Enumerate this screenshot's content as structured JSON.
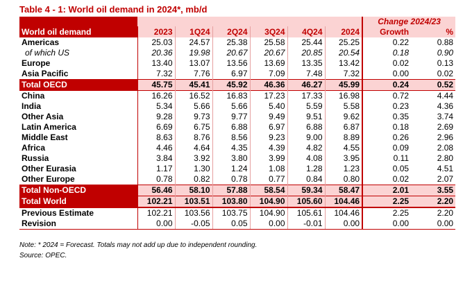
{
  "title": "Table 4 - 1: World oil demand in 2024*, mb/d",
  "header": {
    "change_group": "Change 2024/23",
    "row_label": "World oil demand",
    "periods": [
      "2023",
      "1Q24",
      "2Q24",
      "3Q24",
      "4Q24",
      "2024"
    ],
    "growth": "Growth",
    "pct": "%"
  },
  "groups": [
    {
      "rows": [
        {
          "label": "Americas",
          "values": [
            "25.03",
            "24.57",
            "25.38",
            "25.58",
            "25.44",
            "25.25"
          ],
          "growth": "0.22",
          "pct": "0.88"
        },
        {
          "label": "of which US",
          "values": [
            "20.36",
            "19.98",
            "20.67",
            "20.67",
            "20.85",
            "20.54"
          ],
          "growth": "0.18",
          "pct": "0.90"
        },
        {
          "label": "Europe",
          "values": [
            "13.40",
            "13.07",
            "13.56",
            "13.69",
            "13.35",
            "13.42"
          ],
          "growth": "0.02",
          "pct": "0.13"
        },
        {
          "label": "Asia Pacific",
          "values": [
            "7.32",
            "7.76",
            "6.97",
            "7.09",
            "7.48",
            "7.32"
          ],
          "growth": "0.00",
          "pct": "0.02"
        }
      ],
      "total": {
        "label": "Total OECD",
        "values": [
          "45.75",
          "45.41",
          "45.92",
          "46.36",
          "46.27",
          "45.99"
        ],
        "growth": "0.24",
        "pct": "0.52"
      }
    },
    {
      "rows": [
        {
          "label": "China",
          "values": [
            "16.26",
            "16.52",
            "16.83",
            "17.23",
            "17.33",
            "16.98"
          ],
          "growth": "0.72",
          "pct": "4.44"
        },
        {
          "label": "India",
          "values": [
            "5.34",
            "5.66",
            "5.66",
            "5.40",
            "5.59",
            "5.58"
          ],
          "growth": "0.23",
          "pct": "4.36"
        },
        {
          "label": "Other Asia",
          "values": [
            "9.28",
            "9.73",
            "9.77",
            "9.49",
            "9.51",
            "9.62"
          ],
          "growth": "0.35",
          "pct": "3.74"
        },
        {
          "label": "Latin America",
          "values": [
            "6.69",
            "6.75",
            "6.88",
            "6.97",
            "6.88",
            "6.87"
          ],
          "growth": "0.18",
          "pct": "2.69"
        },
        {
          "label": "Middle East",
          "values": [
            "8.63",
            "8.76",
            "8.56",
            "9.23",
            "9.00",
            "8.89"
          ],
          "growth": "0.26",
          "pct": "2.96"
        },
        {
          "label": "Africa",
          "values": [
            "4.46",
            "4.64",
            "4.35",
            "4.39",
            "4.82",
            "4.55"
          ],
          "growth": "0.09",
          "pct": "2.08"
        },
        {
          "label": "Russia",
          "values": [
            "3.84",
            "3.92",
            "3.80",
            "3.99",
            "4.08",
            "3.95"
          ],
          "growth": "0.11",
          "pct": "2.80"
        },
        {
          "label": "Other Eurasia",
          "values": [
            "1.17",
            "1.30",
            "1.24",
            "1.08",
            "1.28",
            "1.23"
          ],
          "growth": "0.05",
          "pct": "4.51"
        },
        {
          "label": "Other Europe",
          "values": [
            "0.78",
            "0.82",
            "0.78",
            "0.77",
            "0.84",
            "0.80"
          ],
          "growth": "0.02",
          "pct": "2.07"
        }
      ],
      "total": {
        "label": "Total Non-OECD",
        "values": [
          "56.46",
          "58.10",
          "57.88",
          "58.54",
          "59.34",
          "58.47"
        ],
        "growth": "2.01",
        "pct": "3.55"
      }
    }
  ],
  "world_total": {
    "label": "Total World",
    "values": [
      "102.21",
      "103.51",
      "103.80",
      "104.90",
      "105.60",
      "104.46"
    ],
    "growth": "2.25",
    "pct": "2.20"
  },
  "previous_estimate": {
    "label": "Previous Estimate",
    "values": [
      "102.21",
      "103.56",
      "103.75",
      "104.90",
      "105.61",
      "104.46"
    ],
    "growth": "2.25",
    "pct": "2.20"
  },
  "revision": {
    "label": "Revision",
    "values": [
      "0.00",
      "-0.05",
      "0.05",
      "0.00",
      "-0.01",
      "0.00"
    ],
    "growth": "0.00",
    "pct": "0.00"
  },
  "note": "Note: * 2024 = Forecast. Totals may not add up due to independent rounding.",
  "source": "Source: OPEC."
}
